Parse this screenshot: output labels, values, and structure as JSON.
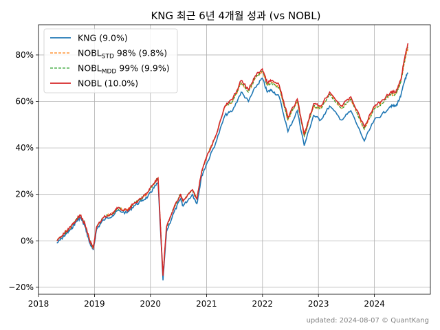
{
  "chart_data": {
    "type": "line",
    "title": "KNG 최근 6년 4개월 성과 (vs NOBL)",
    "xlabel": "",
    "ylabel": "",
    "x_ticks": [
      "2018",
      "2019",
      "2020",
      "2021",
      "2022",
      "2023",
      "2024"
    ],
    "y_ticks": [
      "−20%",
      "0%",
      "20%",
      "40%",
      "60%",
      "80%"
    ],
    "xlim": [
      "2018-01-01",
      "2024-12-31"
    ],
    "ylim": [
      -23,
      93
    ],
    "grid": true,
    "legend_position": "top-left",
    "footer": "updated: 2024-08-07 © QuantKang",
    "series": [
      {
        "name": "KNG (9.0%)",
        "color": "#1f77b4",
        "style": "solid",
        "x": [
          "2018-05-01",
          "2018-06-01",
          "2018-07-01",
          "2018-08-01",
          "2018-09-01",
          "2018-10-01",
          "2018-11-01",
          "2018-12-01",
          "2018-12-24",
          "2019-01-15",
          "2019-03-01",
          "2019-05-01",
          "2019-06-01",
          "2019-08-01",
          "2019-09-15",
          "2019-11-01",
          "2019-12-15",
          "2020-01-15",
          "2020-02-20",
          "2020-03-23",
          "2020-04-15",
          "2020-06-01",
          "2020-07-15",
          "2020-08-01",
          "2020-10-01",
          "2020-10-30",
          "2020-12-01",
          "2021-01-01",
          "2021-03-01",
          "2021-05-01",
          "2021-06-20",
          "2021-08-15",
          "2021-10-01",
          "2021-11-15",
          "2021-12-31",
          "2022-02-01",
          "2022-03-01",
          "2022-04-20",
          "2022-06-16",
          "2022-08-16",
          "2022-09-30",
          "2022-11-30",
          "2023-01-15",
          "2023-03-15",
          "2023-05-31",
          "2023-07-31",
          "2023-10-27",
          "2023-12-31",
          "2024-02-15",
          "2024-04-15",
          "2024-05-20",
          "2024-06-20",
          "2024-07-20",
          "2024-08-07"
        ],
        "y": [
          -1,
          1,
          3,
          5,
          8,
          10,
          6,
          -1,
          -4,
          5,
          9,
          11,
          13,
          12,
          15,
          17,
          19,
          22,
          25,
          -17,
          4,
          12,
          18,
          15,
          20,
          16,
          28,
          33,
          42,
          54,
          56,
          64,
          60,
          66,
          70,
          64,
          65,
          62,
          47,
          56,
          41,
          54,
          52,
          58,
          52,
          56,
          43,
          52,
          54,
          58,
          58,
          62,
          70,
          72
        ]
      },
      {
        "name": "NOBL_STD 98% (9.8%)",
        "name_main": "NOBL",
        "name_sub": "STD",
        "name_rest": " 98% (9.8%)",
        "color": "#ff7f0e",
        "style": "dashed",
        "x": [
          "2018-05-01",
          "2018-06-01",
          "2018-07-01",
          "2018-08-01",
          "2018-09-01",
          "2018-10-01",
          "2018-11-01",
          "2018-12-01",
          "2018-12-24",
          "2019-01-15",
          "2019-03-01",
          "2019-05-01",
          "2019-06-01",
          "2019-08-01",
          "2019-09-15",
          "2019-11-01",
          "2019-12-15",
          "2020-01-15",
          "2020-02-20",
          "2020-03-23",
          "2020-04-15",
          "2020-06-01",
          "2020-07-15",
          "2020-08-01",
          "2020-10-01",
          "2020-10-30",
          "2020-12-01",
          "2021-01-01",
          "2021-03-01",
          "2021-05-01",
          "2021-06-20",
          "2021-08-15",
          "2021-10-01",
          "2021-11-15",
          "2021-12-31",
          "2022-02-01",
          "2022-03-01",
          "2022-04-20",
          "2022-06-16",
          "2022-08-16",
          "2022-09-30",
          "2022-11-30",
          "2023-01-15",
          "2023-03-15",
          "2023-05-31",
          "2023-07-31",
          "2023-10-27",
          "2023-12-31",
          "2024-02-15",
          "2024-04-15",
          "2024-05-20",
          "2024-06-20",
          "2024-07-20",
          "2024-08-07"
        ],
        "y": [
          0,
          2,
          4,
          6,
          9,
          11,
          7,
          0,
          -3,
          6,
          10,
          12,
          14,
          13,
          16,
          18,
          21,
          24,
          27,
          -15,
          6,
          14,
          20,
          17,
          22,
          18,
          30,
          36,
          45,
          58,
          60,
          68,
          64,
          70,
          73,
          67,
          68,
          66,
          52,
          60,
          45,
          58,
          57,
          63,
          57,
          61,
          48,
          57,
          59,
          63,
          63,
          68,
          78,
          83
        ]
      },
      {
        "name": "NOBL_MDD 99% (9.9%)",
        "name_main": "NOBL",
        "name_sub": "MDD",
        "name_rest": " 99% (9.9%)",
        "color": "#2ca02c",
        "style": "dashed",
        "x": [
          "2018-05-01",
          "2018-06-01",
          "2018-07-01",
          "2018-08-01",
          "2018-09-01",
          "2018-10-01",
          "2018-11-01",
          "2018-12-01",
          "2018-12-24",
          "2019-01-15",
          "2019-03-01",
          "2019-05-01",
          "2019-06-01",
          "2019-08-01",
          "2019-09-15",
          "2019-11-01",
          "2019-12-15",
          "2020-01-15",
          "2020-02-20",
          "2020-03-23",
          "2020-04-15",
          "2020-06-01",
          "2020-07-15",
          "2020-08-01",
          "2020-10-01",
          "2020-10-30",
          "2020-12-01",
          "2021-01-01",
          "2021-03-01",
          "2021-05-01",
          "2021-06-20",
          "2021-08-15",
          "2021-10-01",
          "2021-11-15",
          "2021-12-31",
          "2022-02-01",
          "2022-03-01",
          "2022-04-20",
          "2022-06-16",
          "2022-08-16",
          "2022-09-30",
          "2022-11-30",
          "2023-01-15",
          "2023-03-15",
          "2023-05-31",
          "2023-07-31",
          "2023-10-27",
          "2023-12-31",
          "2024-02-15",
          "2024-04-15",
          "2024-05-20",
          "2024-06-20",
          "2024-07-20",
          "2024-08-07"
        ],
        "y": [
          0,
          2,
          4,
          6,
          9,
          11,
          7,
          0,
          -3,
          6,
          10,
          12,
          14,
          13,
          16,
          18,
          21,
          24,
          27,
          -15,
          6,
          14,
          20,
          17,
          22,
          18,
          30,
          36,
          45,
          58,
          60,
          68,
          64,
          70,
          73,
          67,
          68,
          66,
          52,
          60,
          45,
          58,
          57,
          63,
          57,
          61,
          48,
          57,
          59,
          63,
          63,
          68,
          79,
          84
        ]
      },
      {
        "name": "NOBL (10.0%)",
        "color": "#d62728",
        "style": "solid",
        "x": [
          "2018-05-01",
          "2018-06-01",
          "2018-07-01",
          "2018-08-01",
          "2018-09-01",
          "2018-10-01",
          "2018-11-01",
          "2018-12-01",
          "2018-12-24",
          "2019-01-15",
          "2019-03-01",
          "2019-05-01",
          "2019-06-01",
          "2019-08-01",
          "2019-09-15",
          "2019-11-01",
          "2019-12-15",
          "2020-01-15",
          "2020-02-20",
          "2020-03-23",
          "2020-04-15",
          "2020-06-01",
          "2020-07-15",
          "2020-08-01",
          "2020-10-01",
          "2020-10-30",
          "2020-12-01",
          "2021-01-01",
          "2021-03-01",
          "2021-05-01",
          "2021-06-20",
          "2021-08-15",
          "2021-10-01",
          "2021-11-15",
          "2021-12-31",
          "2022-02-01",
          "2022-03-01",
          "2022-04-20",
          "2022-06-16",
          "2022-08-16",
          "2022-09-30",
          "2022-11-30",
          "2023-01-15",
          "2023-03-15",
          "2023-05-31",
          "2023-07-31",
          "2023-10-27",
          "2023-12-31",
          "2024-02-15",
          "2024-04-15",
          "2024-05-20",
          "2024-06-20",
          "2024-07-20",
          "2024-08-07"
        ],
        "y": [
          0,
          2,
          4,
          6,
          9,
          11,
          7,
          0,
          -3,
          6,
          10,
          12,
          14,
          13,
          16,
          18,
          21,
          24,
          27,
          -15,
          6,
          14,
          20,
          17,
          22,
          18,
          30,
          36,
          45,
          58,
          61,
          69,
          65,
          71,
          74,
          68,
          69,
          67,
          53,
          61,
          46,
          59,
          58,
          64,
          58,
          62,
          49,
          58,
          60,
          64,
          64,
          69,
          80,
          85
        ]
      }
    ]
  }
}
